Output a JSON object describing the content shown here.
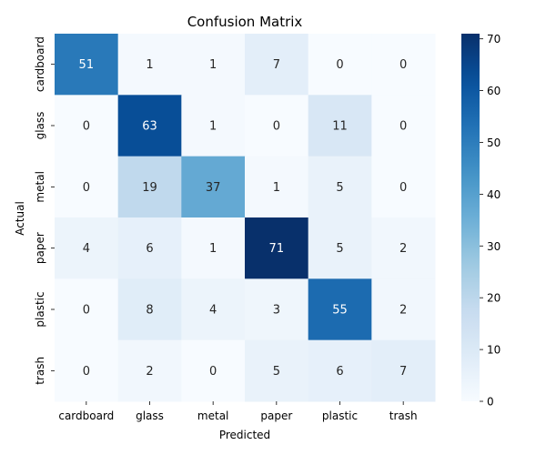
{
  "chart_data": {
    "type": "heatmap",
    "title": "Confusion Matrix",
    "xlabel": "Predicted",
    "ylabel": "Actual",
    "x_categories": [
      "cardboard",
      "glass",
      "metal",
      "paper",
      "plastic",
      "trash"
    ],
    "y_categories": [
      "cardboard",
      "glass",
      "metal",
      "paper",
      "plastic",
      "trash"
    ],
    "values": [
      [
        51,
        1,
        1,
        7,
        0,
        0
      ],
      [
        0,
        63,
        1,
        0,
        11,
        0
      ],
      [
        0,
        19,
        37,
        1,
        5,
        0
      ],
      [
        4,
        6,
        1,
        71,
        5,
        2
      ],
      [
        0,
        8,
        4,
        3,
        55,
        2
      ],
      [
        0,
        2,
        0,
        5,
        6,
        7
      ]
    ],
    "colormap": "Blues",
    "colorbar": {
      "min": 0,
      "max": 71,
      "ticks": [
        0,
        10,
        20,
        30,
        40,
        50,
        60,
        70
      ]
    }
  }
}
